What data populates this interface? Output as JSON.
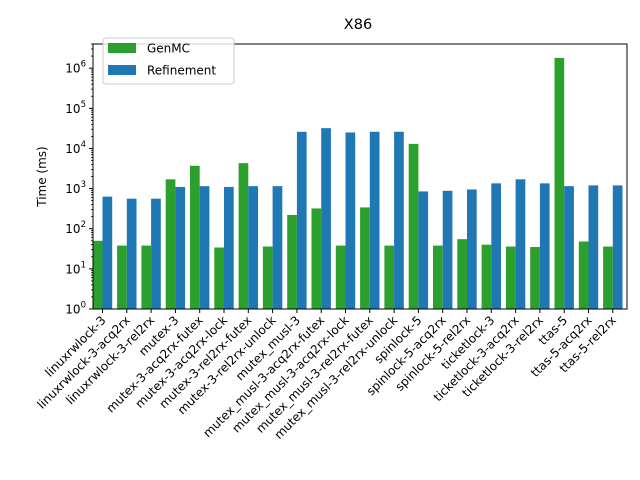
{
  "chart_data": {
    "type": "bar",
    "title": "X86",
    "xlabel": "",
    "ylabel": "Time (ms)",
    "yscale": "log",
    "ylim": [
      1,
      4000000
    ],
    "yticks": [
      1,
      10,
      100,
      1000,
      10000,
      100000,
      1000000
    ],
    "ytick_labels": [
      {
        "base": "10",
        "exp": "0"
      },
      {
        "base": "10",
        "exp": "1"
      },
      {
        "base": "10",
        "exp": "2"
      },
      {
        "base": "10",
        "exp": "3"
      },
      {
        "base": "10",
        "exp": "4"
      },
      {
        "base": "10",
        "exp": "5"
      },
      {
        "base": "10",
        "exp": "6"
      }
    ],
    "legend_position": "top-left",
    "grid": false,
    "categories": [
      "linuxrwlock-3",
      "linuxrwlock-3-acq2rx",
      "linuxrwlock-3-rel2rx",
      "mutex-3",
      "mutex-3-acq2rx-futex",
      "mutex-3-acq2rx-lock",
      "mutex-3-rel2rx-futex",
      "mutex-3-rel2rx-unlock",
      "mutex_musl-3",
      "mutex_musl-3-acq2rx-futex",
      "mutex_musl-3-acq2rx-lock",
      "mutex_musl-3-rel2rx-futex",
      "mutex_musl-3-rel2rx-unlock",
      "spinlock-5",
      "spinlock-5-acq2rx",
      "spinlock-5-rel2rx",
      "ticketlock-3",
      "ticketlock-3-acq2rx",
      "ticketlock-3-rel2rx",
      "ttas-5",
      "ttas-5-acq2rx",
      "ttas-5-rel2rx"
    ],
    "series": [
      {
        "name": "GenMC",
        "color": "#2ca02c",
        "values": [
          50,
          38,
          38,
          1700,
          3700,
          34,
          4300,
          36,
          220,
          320,
          38,
          340,
          38,
          13000,
          38,
          55,
          40,
          36,
          35,
          1800000,
          48,
          36
        ]
      },
      {
        "name": "Refinement",
        "color": "#1f77b4",
        "values": [
          630,
          560,
          560,
          1100,
          1150,
          1100,
          1150,
          1150,
          26000,
          32000,
          25000,
          26000,
          26000,
          850,
          880,
          950,
          1350,
          1700,
          1350,
          1150,
          1200,
          1200
        ]
      }
    ]
  }
}
